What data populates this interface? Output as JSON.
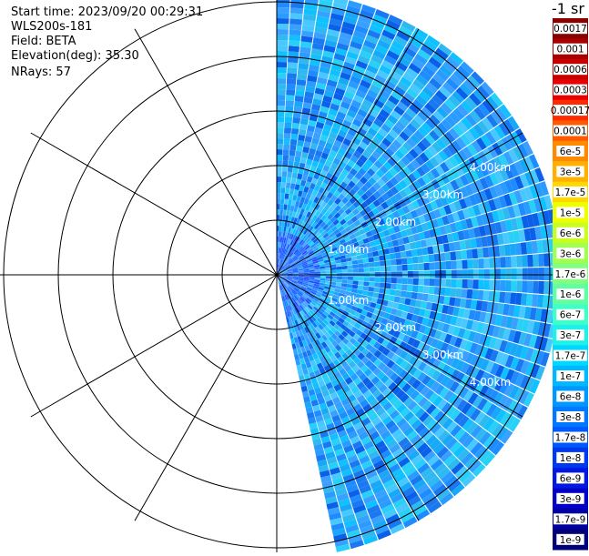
{
  "header": {
    "start_time": "Start time: 2023/09/20 00:29:31",
    "instrument": "WLS200s-181",
    "field": "Field: BETA",
    "elevation": "Elevation(deg): 35.30",
    "nrays": "NRays: 57"
  },
  "colorbar": {
    "unit_label": "-1 sr",
    "labels": [
      "0.0017",
      "0.001",
      "0.0006",
      "0.0003",
      "0.00017",
      "0.0001",
      "6e-5",
      "3e-5",
      "1.7e-5",
      "1e-5",
      "6e-6",
      "3e-6",
      "1.7e-6",
      "1e-6",
      "6e-7",
      "3e-7",
      "1.7e-7",
      "1e-7",
      "6e-8",
      "3e-8",
      "1.7e-8",
      "1e-8",
      "6e-9",
      "3e-9",
      "1.7e-9",
      "1e-9"
    ],
    "colors": [
      "#8b0000",
      "#a80000",
      "#c80000",
      "#e80000",
      "#ff2a00",
      "#ff5a00",
      "#ff8a00",
      "#ffb000",
      "#ffd800",
      "#f0ff00",
      "#c8ff20",
      "#a0ff50",
      "#80ff80",
      "#60ffa0",
      "#40ffc8",
      "#20f0e8",
      "#00d8ff",
      "#00b8ff",
      "#0098ff",
      "#0078ff",
      "#0058ff",
      "#0038f0",
      "#0018e0",
      "#0000c8",
      "#0000a0",
      "#000078"
    ]
  },
  "chart_data": {
    "type": "heatmap",
    "projection": "polar-ppi",
    "range_ring_labels": [
      "1.00km",
      "2.00km",
      "3.00km",
      "4.00km"
    ],
    "range_rings_km": [
      1,
      2,
      3,
      4,
      5
    ],
    "max_range_km": 5.2,
    "spoke_angles_deg": [
      0,
      30,
      60,
      90,
      120,
      150,
      180,
      210,
      240,
      270,
      300,
      330
    ],
    "scan_azimuth_start_deg": 0,
    "scan_azimuth_end_deg": 168,
    "nrays": 57,
    "grid": true
  }
}
